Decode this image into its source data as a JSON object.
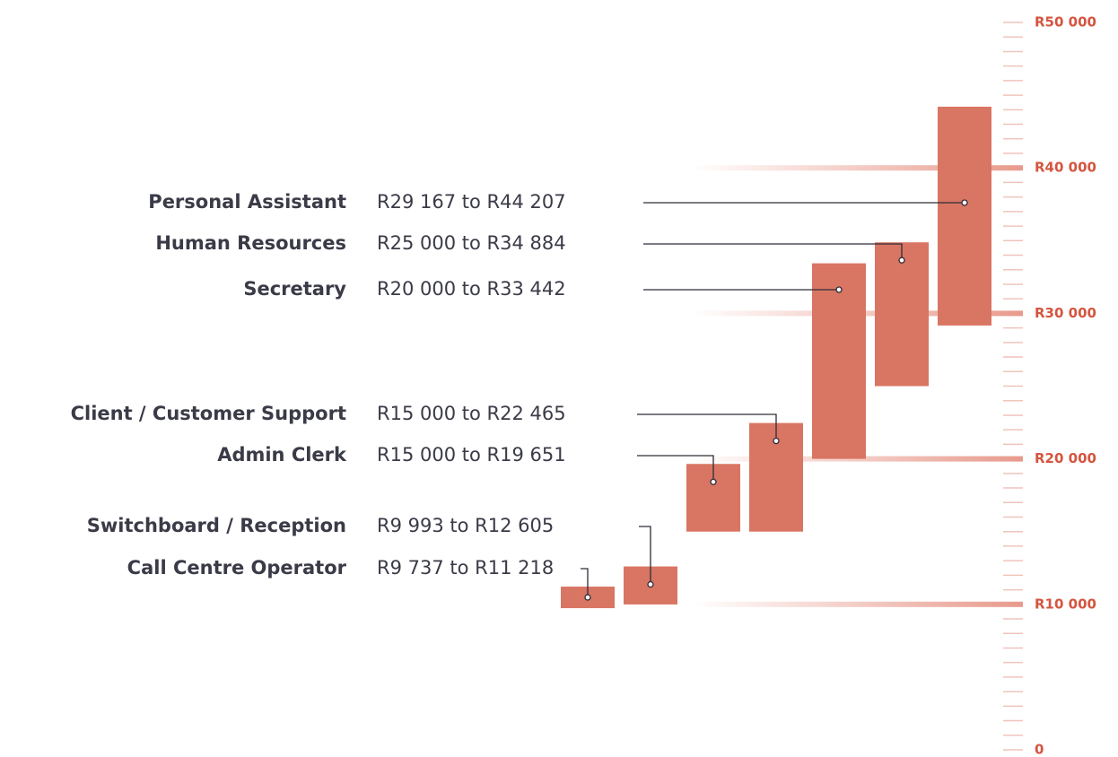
{
  "chart_data": {
    "type": "range-bar",
    "categories": [
      "Call Centre Operator",
      "Switchboard / Reception",
      "Admin Clerk",
      "Client / Customer Support",
      "Secretary",
      "Human Resources",
      "Personal Assistant"
    ],
    "low": [
      9737,
      9993,
      15000,
      15000,
      20000,
      25000,
      29167
    ],
    "high": [
      11218,
      12605,
      19651,
      22465,
      33442,
      34884,
      44207
    ],
    "value_labels": [
      "R9 737 to R11 218",
      "R9 993 to R12 605",
      "R15 000 to R19 651",
      "R15 000 to R22 465",
      "R20 000 to R33 442",
      "R25 000 to R34 884",
      "R29 167 to R44 207"
    ],
    "color": "#d97563",
    "ylim": [
      0,
      50000
    ],
    "yticks": [
      0,
      {
        "value": 10000,
        "label": "R10 000"
      },
      {
        "value": 20000,
        "label": "R20 000"
      },
      {
        "value": 30000,
        "label": "R30 000"
      },
      {
        "value": 40000,
        "label": "R40 000"
      },
      {
        "value": 50000,
        "label": "R50 000"
      }
    ],
    "minor_yticks": [
      1000,
      2000,
      3000,
      4000,
      5000,
      6000,
      7000,
      8000,
      9000,
      11000,
      12000,
      13000,
      14000,
      15000,
      16000,
      17000,
      18000,
      19000,
      21000,
      22000,
      23000,
      24000,
      25000,
      26000,
      27000,
      28000,
      29000,
      31000,
      32000,
      33000,
      34000,
      35000,
      36000,
      37000,
      38000,
      39000,
      41000,
      42000,
      43000,
      44000,
      45000,
      46000,
      47000,
      48000,
      49000
    ],
    "grid": true
  }
}
